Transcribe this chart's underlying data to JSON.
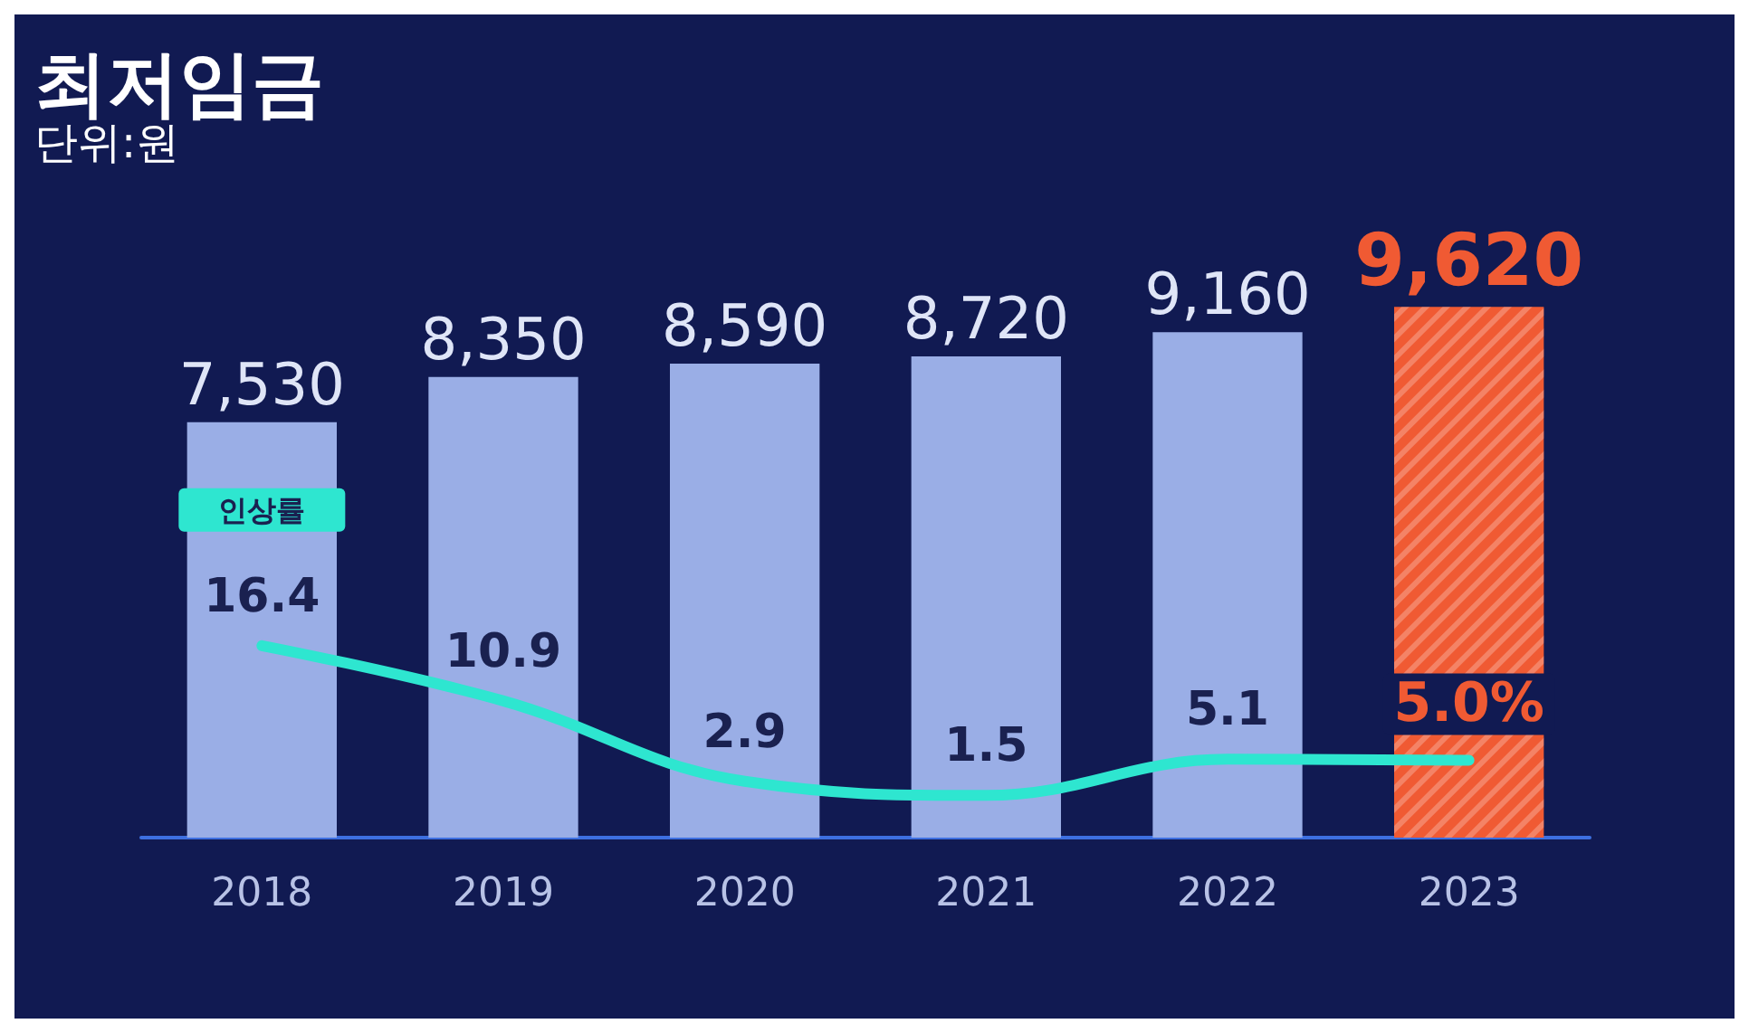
{
  "chart_data": {
    "type": "bar",
    "title": "최저임금",
    "subtitle": "단위:원",
    "categories": [
      "2018",
      "2019",
      "2020",
      "2021",
      "2022",
      "2023"
    ],
    "series": [
      {
        "type": "bar",
        "values": [
          7530,
          8350,
          8590,
          8720,
          9160,
          9620
        ],
        "colors": [
          "#9aaee6",
          "#9aaee6",
          "#9aaee6",
          "#9aaee6",
          "#9aaee6",
          "#f05a33"
        ],
        "value_labels": [
          "7,530",
          "8,350",
          "8,590",
          "8,720",
          "9,160",
          "9,620"
        ]
      },
      {
        "type": "line",
        "name": "인상률",
        "axis": "y2",
        "color": "#2ee6d0",
        "values": [
          16.4,
          10.9,
          2.9,
          1.5,
          5.1,
          5.0
        ],
        "value_labels": [
          "16.4",
          "10.9",
          "2.9",
          "1.5",
          "5.1",
          "5.0%"
        ]
      }
    ],
    "tick_labels": "x",
    "grid": false,
    "legend": false,
    "marker": "none"
  }
}
